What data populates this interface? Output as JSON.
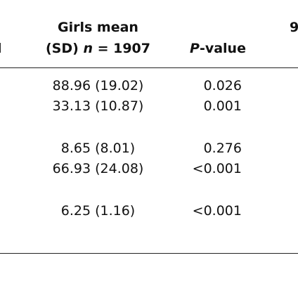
{
  "table": {
    "left_header_fragment": "l",
    "right_header_fragment": "9",
    "girls_header_line1": "Girls mean",
    "girls_header_line2_prefix": "(SD) ",
    "girls_header_line2_var": "n",
    "girls_header_line2_suffix": " = 1907",
    "p_header_var": "P",
    "p_header_suffix": "-value",
    "rows": [
      {
        "girls": "88.96 (19.02)",
        "p": "0.026"
      },
      {
        "girls": "33.13 (10.87)",
        "p": "0.001"
      },
      {
        "girls": "8.65 (8.01)",
        "p": "0.276"
      },
      {
        "girls": "66.93 (24.08)",
        "p": "<0.001"
      },
      {
        "girls": "6.25 (1.16)",
        "p": "<0.001"
      }
    ]
  }
}
